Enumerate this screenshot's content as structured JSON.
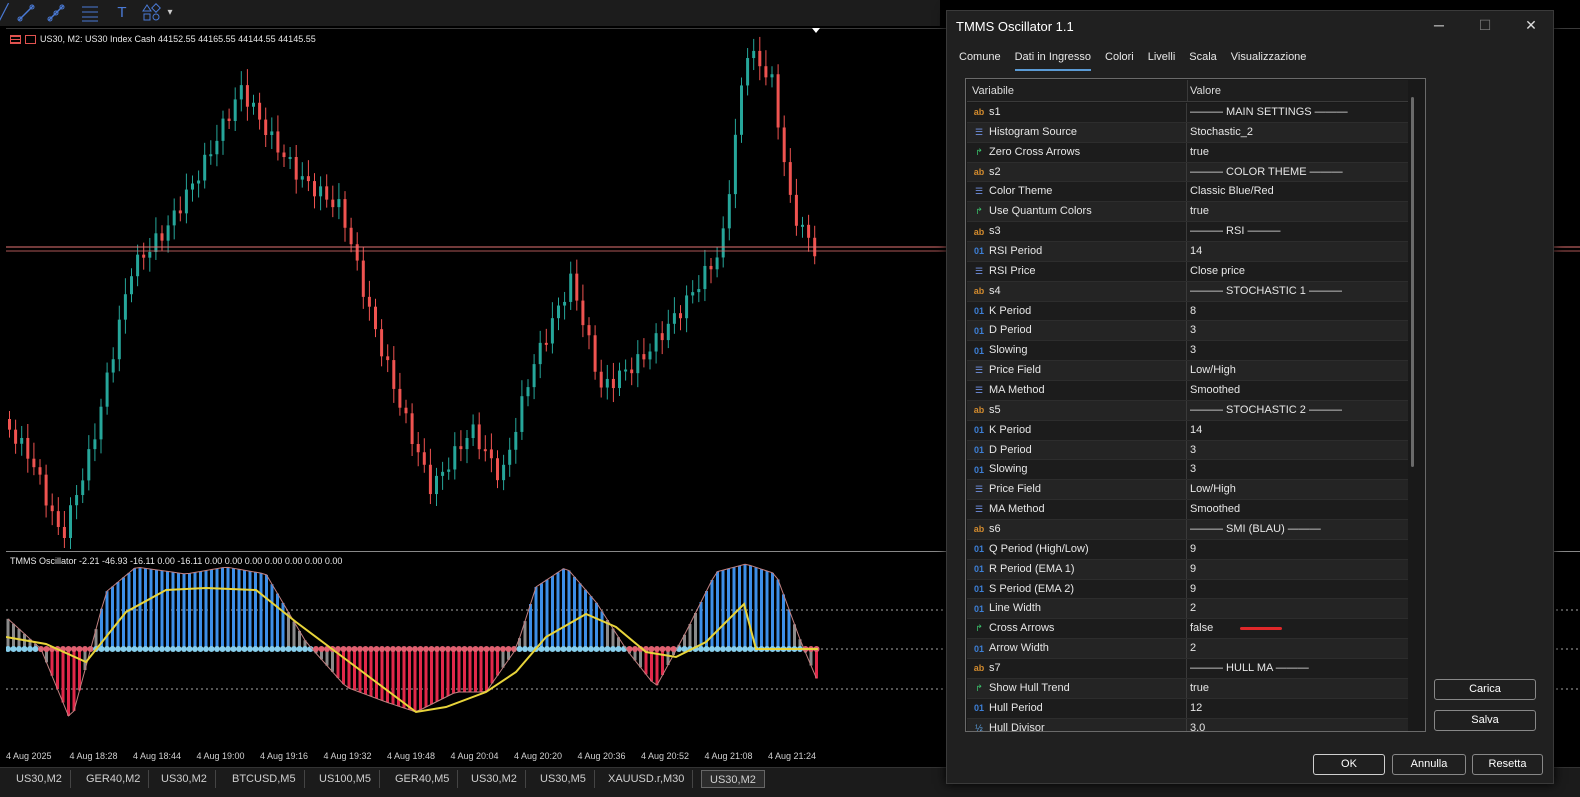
{
  "toolbar": {
    "icons": [
      "trendline-icon",
      "channel-icon",
      "fibonacci-icon",
      "text-tool-icon",
      "shapes-icon"
    ],
    "glyphs": {
      "t": "T",
      "more": "▾"
    }
  },
  "chart": {
    "symbol_info": "US30, M2:  US30 Index Cash  44152.55 44165.55 44144.55 44145.55",
    "bull_color": "#26a69a",
    "bear_color": "#ef5350",
    "level_color": "#e57373"
  },
  "oscillator": {
    "info": "TMMS Oscillator -2.21 -46.93 -16.11 0.00 -16.11 0.00 0.00 0.00 0.00 0.00 0.00 0.00",
    "bull_color": "#3d8fe8",
    "bear_color": "#e0284a",
    "neutral_color": "#8a8a8a",
    "signal_color": "#e8d43a",
    "dot_bull_color": "#87ceeb",
    "dot_bear_color": "#e06070"
  },
  "time_axis": [
    "4 Aug 2025",
    "4 Aug 18:28",
    "4 Aug 18:44",
    "4 Aug 19:00",
    "4 Aug 19:16",
    "4 Aug 19:32",
    "4 Aug 19:48",
    "4 Aug 20:04",
    "4 Aug 20:20",
    "4 Aug 20:36",
    "4 Aug 20:52",
    "4 Aug 21:08",
    "4 Aug 21:24"
  ],
  "chart_tabs": [
    "US30,M2",
    "GER40,M2",
    "US30,M2",
    "BTCUSD,M5",
    "US100,M5",
    "GER40,M5",
    "US30,M2",
    "US30,M5",
    "XAUUSD.r,M30",
    "US30,M2"
  ],
  "dialog": {
    "title": "TMMS Oscillator  1.1",
    "window_buttons": {
      "minimize": "─",
      "maximize": "☐",
      "close": "✕"
    },
    "tabs": [
      "Comune",
      "Dati in Ingresso",
      "Colori",
      "Livelli",
      "Scala",
      "Visualizzazione"
    ],
    "active_tab": "Dati in Ingresso",
    "columns": {
      "variable": "Variabile",
      "value": "Valore"
    },
    "rows": [
      {
        "icon": "ab",
        "type": "ab",
        "name": "s1",
        "value": "——— MAIN SETTINGS ———"
      },
      {
        "icon": "☰",
        "type": "enum",
        "name": "Histogram Source",
        "value": "Stochastic_2"
      },
      {
        "icon": "↱",
        "type": "bool",
        "name": "Zero Cross Arrows",
        "value": "true"
      },
      {
        "icon": "ab",
        "type": "ab",
        "name": "s2",
        "value": "——— COLOR THEME ———"
      },
      {
        "icon": "☰",
        "type": "enum",
        "name": "Color Theme",
        "value": "Classic Blue/Red"
      },
      {
        "icon": "↱",
        "type": "bool",
        "name": "Use Quantum Colors",
        "value": "true"
      },
      {
        "icon": "ab",
        "type": "ab",
        "name": "s3",
        "value": "——— RSI ———"
      },
      {
        "icon": "01",
        "type": "01",
        "name": "RSI Period",
        "value": "14"
      },
      {
        "icon": "☰",
        "type": "enum",
        "name": "RSI Price",
        "value": "Close price"
      },
      {
        "icon": "ab",
        "type": "ab",
        "name": "s4",
        "value": "——— STOCHASTIC 1 ———"
      },
      {
        "icon": "01",
        "type": "01",
        "name": "K Period",
        "value": "8"
      },
      {
        "icon": "01",
        "type": "01",
        "name": "D Period",
        "value": "3"
      },
      {
        "icon": "01",
        "type": "01",
        "name": "Slowing",
        "value": "3"
      },
      {
        "icon": "☰",
        "type": "enum",
        "name": "Price Field",
        "value": "Low/High"
      },
      {
        "icon": "☰",
        "type": "enum",
        "name": "MA Method",
        "value": "Smoothed"
      },
      {
        "icon": "ab",
        "type": "ab",
        "name": "s5",
        "value": "——— STOCHASTIC 2 ———"
      },
      {
        "icon": "01",
        "type": "01",
        "name": "K Period",
        "value": "14"
      },
      {
        "icon": "01",
        "type": "01",
        "name": "D Period",
        "value": "3"
      },
      {
        "icon": "01",
        "type": "01",
        "name": "Slowing",
        "value": "3"
      },
      {
        "icon": "☰",
        "type": "enum",
        "name": "Price Field",
        "value": "Low/High"
      },
      {
        "icon": "☰",
        "type": "enum",
        "name": "MA Method",
        "value": "Smoothed"
      },
      {
        "icon": "ab",
        "type": "ab",
        "name": "s6",
        "value": "——— SMI (BLAU) ———"
      },
      {
        "icon": "01",
        "type": "01",
        "name": "Q Period (High/Low)",
        "value": "9"
      },
      {
        "icon": "01",
        "type": "01",
        "name": "R Period (EMA 1)",
        "value": "9"
      },
      {
        "icon": "01",
        "type": "01",
        "name": "S Period (EMA 2)",
        "value": "9"
      },
      {
        "icon": "01",
        "type": "01",
        "name": "Line Width",
        "value": "2"
      },
      {
        "icon": "↱",
        "type": "bool",
        "name": "Cross Arrows",
        "value": "false"
      },
      {
        "icon": "01",
        "type": "01",
        "name": "Arrow Width",
        "value": "2"
      },
      {
        "icon": "ab",
        "type": "ab",
        "name": "s7",
        "value": "——— HULL MA ———"
      },
      {
        "icon": "↱",
        "type": "bool",
        "name": "Show Hull Trend",
        "value": "true"
      },
      {
        "icon": "01",
        "type": "01",
        "name": "Hull Period",
        "value": "12"
      },
      {
        "icon": "½",
        "type": "dbl",
        "name": "Hull Divisor",
        "value": "3.0"
      }
    ],
    "buttons": {
      "load": "Carica",
      "save": "Salva",
      "ok": "OK",
      "cancel": "Annulla",
      "reset": "Resetta"
    }
  }
}
